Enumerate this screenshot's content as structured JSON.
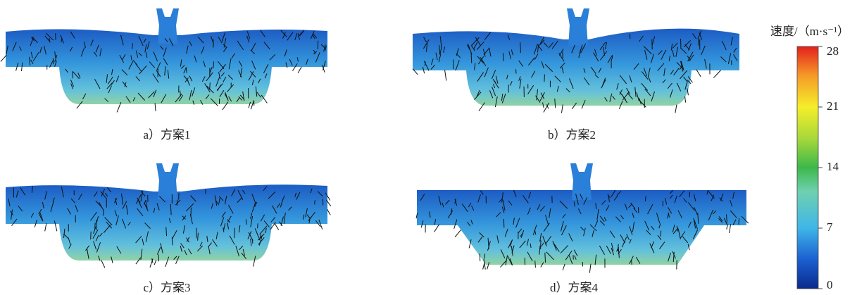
{
  "panels": [
    {
      "caption": "a）方案1"
    },
    {
      "caption": "b）方案2"
    },
    {
      "caption": "c）方案3"
    },
    {
      "caption": "d）方案4"
    }
  ],
  "colorbar": {
    "label": "速度/（m·s⁻¹）",
    "range": [
      0,
      28
    ],
    "ticks": [
      0,
      7,
      14,
      21,
      28
    ]
  }
}
